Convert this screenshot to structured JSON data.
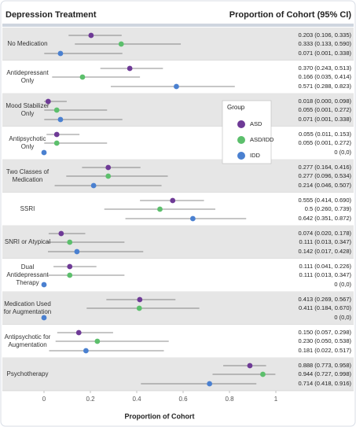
{
  "chart_data": {
    "type": "forest",
    "header_left": "Depression Treatment",
    "header_right": "Proportion of Cohort (95% CI)",
    "xlabel": "Proportion of Cohort",
    "legend_title": "Group",
    "legend_position": "right",
    "xlim": [
      0,
      1
    ],
    "xticks": [
      0,
      0.2,
      0.4,
      0.6,
      0.8,
      1
    ],
    "categories": [
      "No Medication",
      "Antidepressant Only",
      "Mood Stabilizer Only",
      "Antipsychotic Only",
      "Two Classes of Medication",
      "SSRI",
      "SNRI or Atypical",
      "Dual Antidepressant Therapy",
      "Medication Used for Augmentation",
      "Antipsychotic for Augmentation",
      "Psychotherapy"
    ],
    "series": [
      {
        "name": "ASD",
        "color": "#6e3a96",
        "values": [
          0.203,
          0.37,
          0.018,
          0.055,
          0.277,
          0.555,
          0.074,
          0.111,
          0.413,
          0.15,
          0.888
        ],
        "lo": [
          0.106,
          0.243,
          0.0,
          0.011,
          0.164,
          0.414,
          0.02,
          0.041,
          0.269,
          0.057,
          0.773
        ],
        "hi": [
          0.335,
          0.513,
          0.098,
          0.153,
          0.416,
          0.69,
          0.178,
          0.226,
          0.567,
          0.298,
          0.958
        ],
        "value_labels": [
          "0.203 (0.106, 0.335)",
          "0.370 (0.243, 0.513)",
          "0.018 (0.000, 0.098)",
          "0.055 (0.011, 0.153)",
          "0.277 (0.164, 0.416)",
          "0.555 (0.414, 0.690)",
          "0.074 (0.020, 0.178)",
          "0.111 (0.041, 0.226)",
          "0.413 (0.269, 0.567)",
          "0.150 (0.057, 0.298)",
          "0.888 (0.773, 0.958)"
        ]
      },
      {
        "name": "ASD/IDD",
        "color": "#5cbf6c",
        "values": [
          0.333,
          0.166,
          0.055,
          0.055,
          0.277,
          0.5,
          0.111,
          0.111,
          0.411,
          0.23,
          0.944
        ],
        "lo": [
          0.133,
          0.035,
          0.001,
          0.001,
          0.096,
          0.26,
          0.013,
          0.013,
          0.184,
          0.05,
          0.727
        ],
        "hi": [
          0.59,
          0.414,
          0.272,
          0.272,
          0.534,
          0.739,
          0.347,
          0.347,
          0.67,
          0.538,
          0.998
        ],
        "value_labels": [
          "0.333 (0.133, 0.590)",
          "0.166 (0.035, 0.414)",
          "0.055 (0.001, 0.272)",
          "0.055 (0.001, 0.272)",
          "0.277 (0.096, 0.534)",
          "0.5 (0.260, 0.739)",
          "0.111 (0.013, 0.347)",
          "0.111 (0.013, 0.347)",
          "0.411 (0.184, 0.670)",
          "0.230 (0.050, 0.538)",
          "0.944 (0.727, 0.998)"
        ]
      },
      {
        "name": "IDD",
        "color": "#4a80d0",
        "values": [
          0.071,
          0.571,
          0.071,
          0,
          0.214,
          0.642,
          0.142,
          0,
          0,
          0.181,
          0.714
        ],
        "lo": [
          0.001,
          0.288,
          0.001,
          0,
          0.046,
          0.351,
          0.017,
          0,
          0,
          0.022,
          0.418
        ],
        "hi": [
          0.338,
          0.823,
          0.338,
          0,
          0.507,
          0.872,
          0.428,
          0,
          0,
          0.517,
          0.916
        ],
        "value_labels": [
          "0.071 (0.001, 0.338)",
          "0.571 (0.288, 0.823)",
          "0.071 (0.001, 0.338)",
          "0 (0,0)",
          "0.214 (0.046, 0.507)",
          "0.642 (0.351, 0.872)",
          "0.142 (0.017, 0.428)",
          "0 (0,0)",
          "0 (0,0)",
          "0.181 (0.022, 0.517)",
          "0.714 (0.418, 0.916)"
        ]
      }
    ]
  }
}
